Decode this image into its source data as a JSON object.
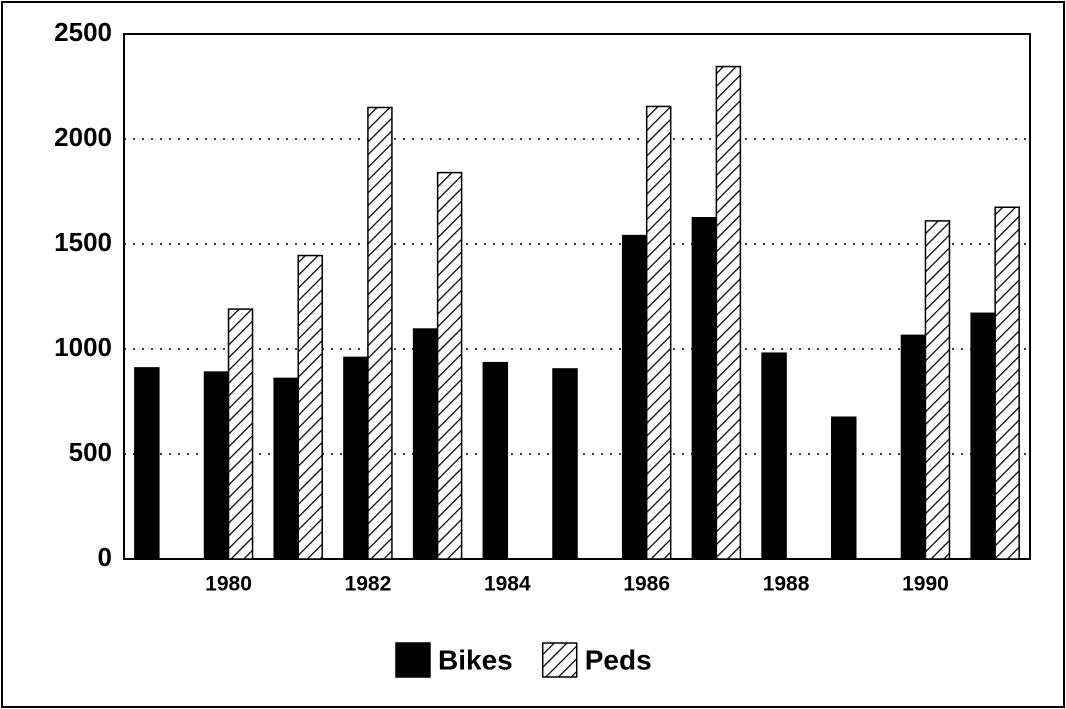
{
  "chart_data": {
    "type": "bar",
    "categories": [
      null,
      "1980",
      null,
      "1982",
      null,
      "1984",
      null,
      "1986",
      null,
      "1988",
      null,
      "1990",
      null
    ],
    "series": [
      {
        "name": "Bikes",
        "color": "#000000",
        "values": [
          910,
          890,
          860,
          960,
          1095,
          935,
          905,
          1540,
          1625,
          980,
          675,
          1065,
          1170
        ]
      },
      {
        "name": "Peds",
        "color": "#000000",
        "pattern": "hatch",
        "values": [
          null,
          1190,
          1445,
          2150,
          1840,
          null,
          null,
          2155,
          2345,
          null,
          null,
          1610,
          1675
        ]
      }
    ],
    "ylim": [
      0,
      2500
    ],
    "yticks": [
      0,
      500,
      1000,
      1500,
      2000,
      2500
    ],
    "grid": true,
    "legend": "bottom"
  }
}
